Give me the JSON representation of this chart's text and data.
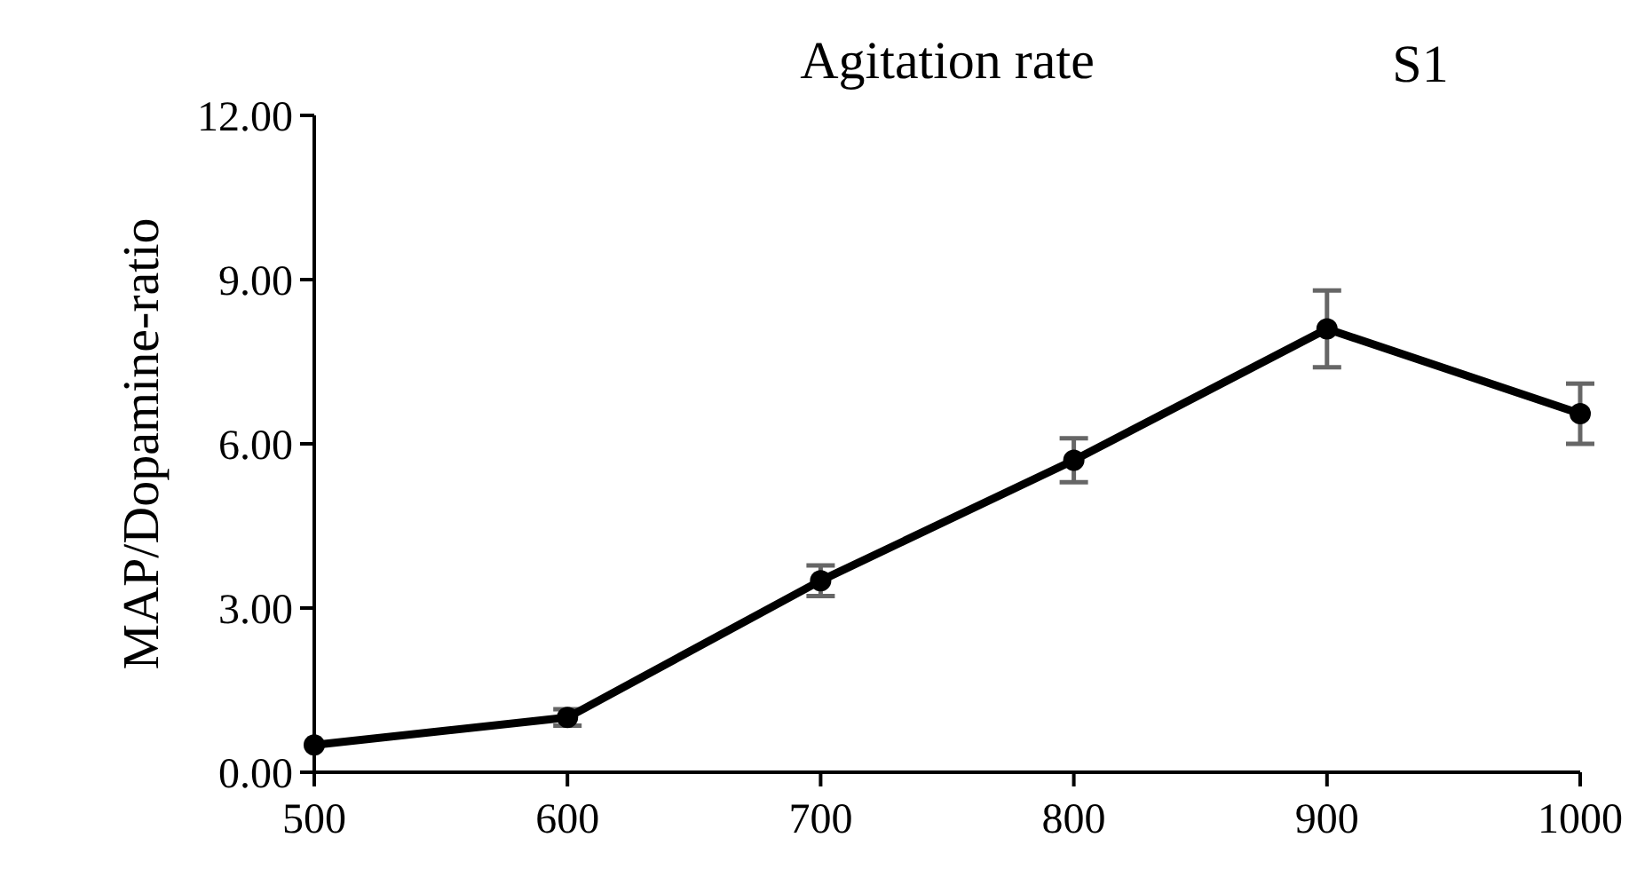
{
  "chart_data": {
    "type": "line",
    "title": "Agitation rate",
    "ylabel": "MAP/Dopamine-ratio",
    "annotations": [
      "S1"
    ],
    "x": [
      500,
      600,
      700,
      800,
      900,
      1000
    ],
    "series": [
      {
        "color": "#000000",
        "values": [
          0.5,
          1.0,
          3.5,
          5.7,
          8.1,
          6.55
        ],
        "errors": [
          null,
          0.15,
          0.28,
          0.4,
          0.7,
          0.55
        ]
      }
    ],
    "xlim": [
      500,
      1000
    ],
    "xticks": [
      500,
      600,
      700,
      800,
      900,
      1000
    ],
    "ylim": [
      0,
      12
    ],
    "yticks": [
      {
        "value": 0,
        "label": "0.00"
      },
      {
        "value": 3,
        "label": "3.00"
      },
      {
        "value": 6,
        "label": "6.00"
      },
      {
        "value": 9,
        "label": "9.00"
      },
      {
        "value": 12,
        "label": "12.00"
      }
    ],
    "marker": "circle",
    "line_style": "solid",
    "grid": false
  }
}
